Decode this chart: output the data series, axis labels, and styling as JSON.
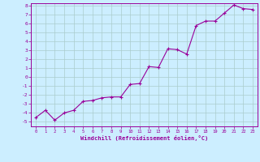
{
  "x": [
    0,
    1,
    2,
    3,
    4,
    5,
    6,
    7,
    8,
    9,
    10,
    11,
    12,
    13,
    14,
    15,
    16,
    17,
    18,
    19,
    20,
    21,
    22,
    23
  ],
  "y": [
    -4.5,
    -3.7,
    -4.8,
    -4.0,
    -3.7,
    -2.7,
    -2.6,
    -2.3,
    -2.2,
    -2.2,
    -0.8,
    -0.7,
    1.2,
    1.1,
    3.2,
    3.1,
    2.6,
    5.8,
    6.3,
    6.3,
    7.2,
    8.1,
    7.7,
    7.6
  ],
  "line_color": "#990099",
  "marker": "+",
  "marker_size": 3,
  "bg_color": "#cceeff",
  "grid_color": "#aacccc",
  "xlabel": "Windchill (Refroidissement éolien,°C)",
  "xlabel_color": "#990099",
  "tick_color": "#990099",
  "axis_color": "#990099",
  "ylim": [
    -5,
    8
  ],
  "xlim": [
    -0.5,
    23.5
  ],
  "yticks": [
    -5,
    -4,
    -3,
    -2,
    -1,
    0,
    1,
    2,
    3,
    4,
    5,
    6,
    7,
    8
  ],
  "xticks": [
    0,
    1,
    2,
    3,
    4,
    5,
    6,
    7,
    8,
    9,
    10,
    11,
    12,
    13,
    14,
    15,
    16,
    17,
    18,
    19,
    20,
    21,
    22,
    23
  ]
}
